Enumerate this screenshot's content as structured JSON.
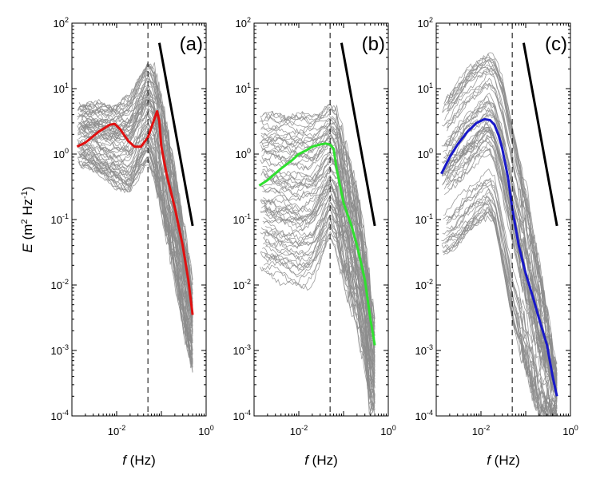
{
  "chart_data": {
    "type": "line",
    "scale": "log-log",
    "xlabel": {
      "var": "f",
      "unit": " (Hz)"
    },
    "ylabel": {
      "var": "E",
      "pre": " (m",
      "sup1": "2",
      "mid": " Hz",
      "sup2": "-1",
      "post": ")"
    },
    "xlim": [
      0.001,
      1
    ],
    "ylim": [
      0.0001,
      100
    ],
    "x_ticks": [
      {
        "value": 0.01,
        "base": "10",
        "exp": "-2"
      },
      {
        "value": 1,
        "base": "10",
        "exp": "0"
      }
    ],
    "y_ticks": [
      {
        "value": 100,
        "base": "10",
        "exp": "2"
      },
      {
        "value": 10,
        "base": "10",
        "exp": "1"
      },
      {
        "value": 1,
        "base": "10",
        "exp": "0"
      },
      {
        "value": 0.1,
        "base": "10",
        "exp": "-1"
      },
      {
        "value": 0.01,
        "base": "10",
        "exp": "-2"
      },
      {
        "value": 0.001,
        "base": "10",
        "exp": "-3"
      },
      {
        "value": 0.0001,
        "base": "10",
        "exp": "-4"
      }
    ],
    "reference_frequency": 0.05,
    "background_curve_color": "#8c8c8c",
    "slope_line_color": "#000000",
    "panels": [
      {
        "label": "(a)",
        "mean_color": "#e01010",
        "mean": {
          "f": [
            0.0013,
            0.002,
            0.004,
            0.007,
            0.009,
            0.012,
            0.018,
            0.025,
            0.035,
            0.05,
            0.065,
            0.08,
            0.09,
            0.1,
            0.13,
            0.2,
            0.3,
            0.4,
            0.5
          ],
          "E": [
            1.3,
            1.5,
            2.2,
            2.8,
            2.9,
            2.4,
            1.6,
            1.3,
            1.3,
            1.8,
            3.0,
            4.5,
            3.2,
            1.3,
            0.5,
            0.15,
            0.04,
            0.012,
            0.0035
          ]
        },
        "slope_line": {
          "f": [
            0.09,
            0.5
          ],
          "E": [
            50,
            0.08
          ]
        },
        "envelope": {
          "f": [
            0.0013,
            0.003,
            0.01,
            0.02,
            0.03,
            0.05,
            0.07,
            0.1,
            0.2,
            0.3,
            0.4,
            0.5
          ],
          "upper": [
            6,
            6,
            6,
            8,
            15,
            28,
            20,
            8,
            0.6,
            0.1,
            0.03,
            0.01
          ],
          "lower": [
            0.6,
            0.5,
            0.25,
            0.2,
            0.35,
            0.6,
            0.3,
            0.1,
            0.01,
            0.002,
            0.0008,
            0.0004
          ]
        }
      },
      {
        "label": "(b)",
        "mean_color": "#30e030",
        "mean": {
          "f": [
            0.0013,
            0.002,
            0.004,
            0.007,
            0.01,
            0.015,
            0.02,
            0.03,
            0.04,
            0.05,
            0.06,
            0.07,
            0.1,
            0.15,
            0.2,
            0.3,
            0.4,
            0.5
          ],
          "E": [
            0.33,
            0.4,
            0.6,
            0.8,
            1.0,
            1.15,
            1.3,
            1.4,
            1.45,
            1.4,
            1.2,
            0.6,
            0.18,
            0.08,
            0.04,
            0.012,
            0.003,
            0.0012
          ]
        },
        "slope_line": {
          "f": [
            0.09,
            0.5
          ],
          "E": [
            50,
            0.08
          ]
        },
        "envelope": {
          "f": [
            0.0013,
            0.003,
            0.01,
            0.02,
            0.03,
            0.05,
            0.07,
            0.1,
            0.2,
            0.3,
            0.4,
            0.5
          ],
          "upper": [
            4.5,
            4.5,
            4.5,
            4.5,
            5,
            6,
            5,
            2,
            0.3,
            0.05,
            0.01,
            0.003
          ],
          "lower": [
            0.015,
            0.012,
            0.008,
            0.01,
            0.02,
            0.05,
            0.03,
            0.01,
            0.002,
            0.0005,
            0.0001,
            0.0001
          ]
        }
      },
      {
        "label": "(c)",
        "mean_color": "#1818c8",
        "mean": {
          "f": [
            0.0013,
            0.002,
            0.003,
            0.005,
            0.008,
            0.012,
            0.016,
            0.02,
            0.025,
            0.03,
            0.04,
            0.05,
            0.07,
            0.1,
            0.15,
            0.2,
            0.3,
            0.4,
            0.5
          ],
          "E": [
            0.5,
            0.9,
            1.4,
            2.2,
            3.0,
            3.4,
            3.3,
            2.8,
            1.9,
            1.2,
            0.45,
            0.15,
            0.04,
            0.015,
            0.006,
            0.003,
            0.0012,
            0.0004,
            0.0002
          ]
        },
        "slope_line": {
          "f": [
            0.09,
            0.5
          ],
          "E": [
            50,
            0.08
          ]
        },
        "envelope": {
          "f": [
            0.0013,
            0.003,
            0.005,
            0.01,
            0.015,
            0.02,
            0.03,
            0.05,
            0.1,
            0.2,
            0.3,
            0.4,
            0.5
          ],
          "upper": [
            6,
            12,
            20,
            30,
            35,
            30,
            15,
            3,
            0.3,
            0.02,
            0.004,
            0.001,
            0.0005
          ],
          "lower": [
            0.03,
            0.04,
            0.06,
            0.1,
            0.12,
            0.08,
            0.02,
            0.003,
            0.0005,
            0.0001,
            0.0001,
            0.0001,
            0.0001
          ]
        }
      }
    ]
  }
}
